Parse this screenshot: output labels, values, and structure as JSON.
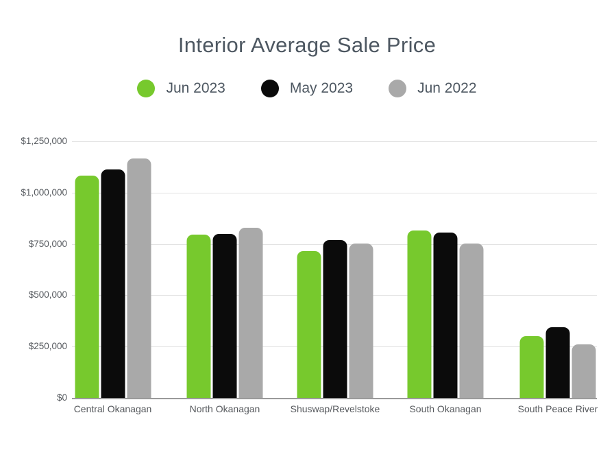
{
  "title": "Interior Average Sale Price",
  "chart_data": {
    "type": "bar",
    "categories": [
      "Central Okanagan",
      "North Okanagan",
      "Shuswap/Revelstoke",
      "South Okanagan",
      "South Peace River"
    ],
    "series": [
      {
        "name": "Jun 2023",
        "color": "#77c92d",
        "values": [
          1083000,
          794000,
          717000,
          816000,
          300000
        ]
      },
      {
        "name": "May 2023",
        "color": "#0b0b0b",
        "values": [
          1112000,
          800000,
          770000,
          806000,
          344000
        ]
      },
      {
        "name": "Jun 2022",
        "color": "#a9a9a9",
        "values": [
          1168000,
          830000,
          752000,
          752000,
          262000
        ]
      }
    ],
    "ylim": [
      0,
      1250000
    ],
    "ytick_step": 250000,
    "ytick_labels": [
      "$0",
      "$250,000",
      "$500,000",
      "$750,000",
      "$1,000,000",
      "$1,250,000"
    ],
    "grid": true,
    "legend_position": "top",
    "xlabel": "",
    "ylabel": ""
  },
  "colors": {
    "background": "#ffffff",
    "title_text": "#4d5761",
    "axis_text": "#55595e",
    "gridline": "#e2e2e2",
    "axis_line": "#9a9a9a"
  }
}
